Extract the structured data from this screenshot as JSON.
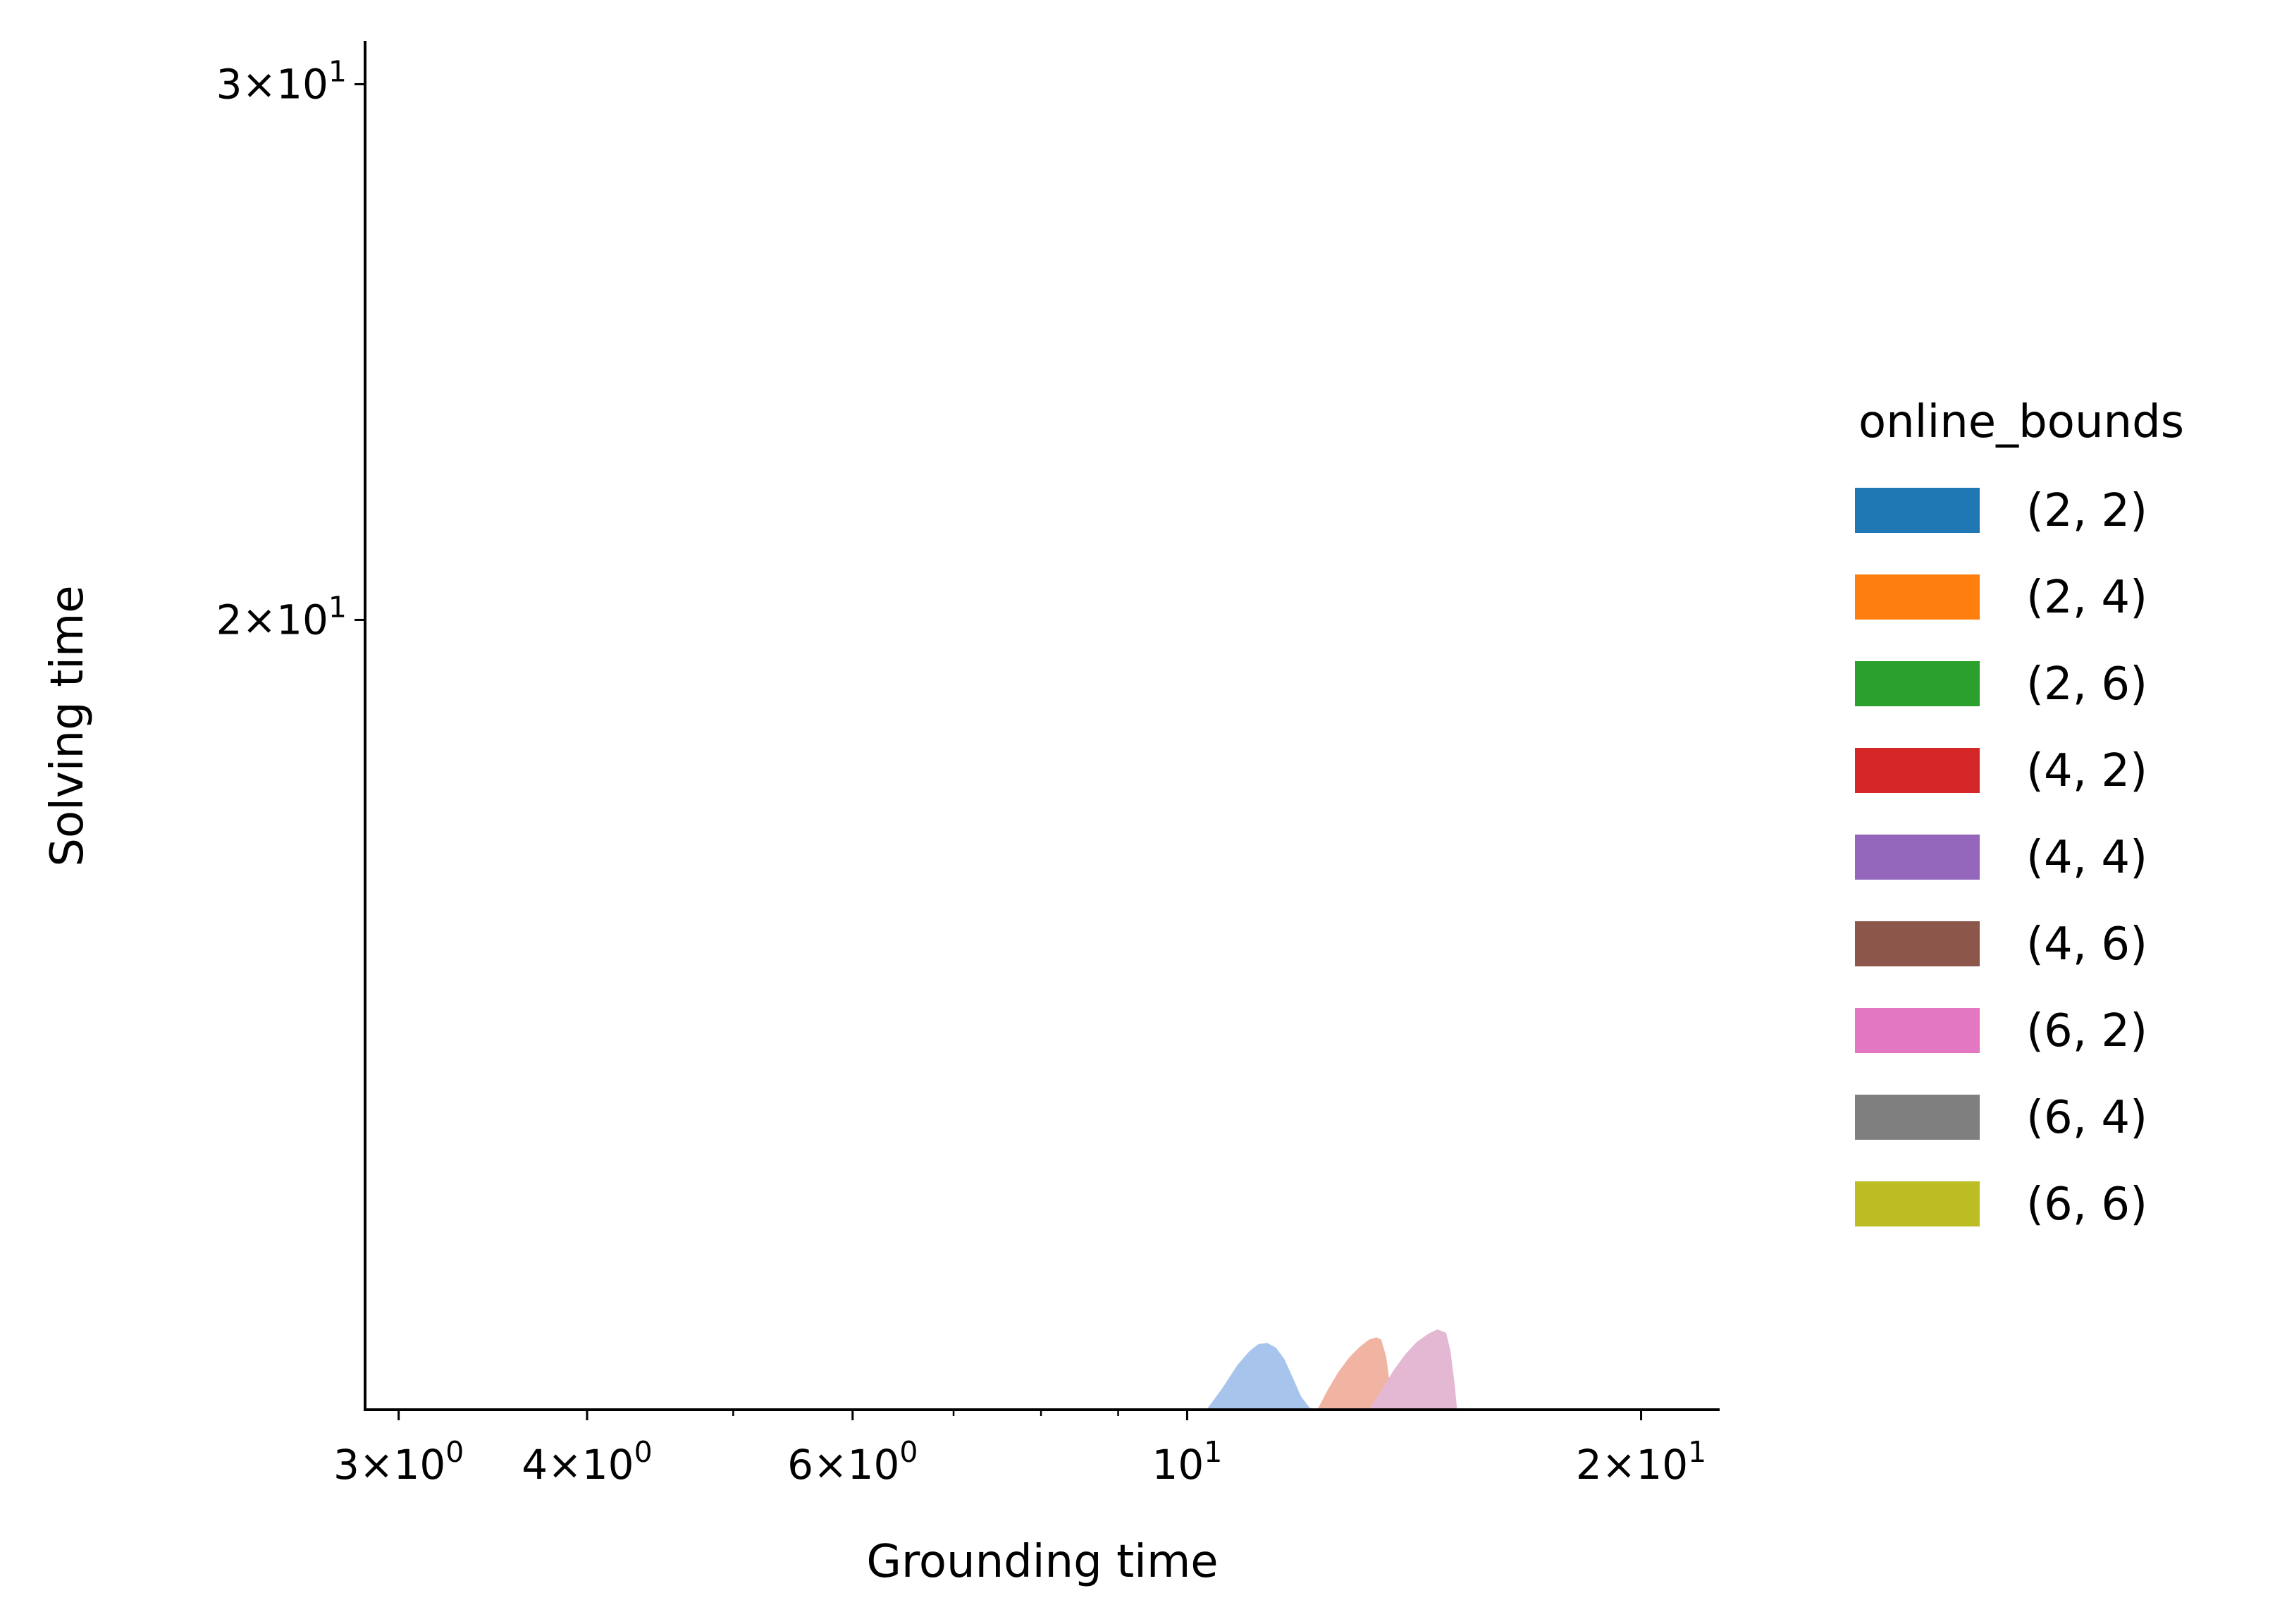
{
  "chart_data": {
    "type": "area",
    "xlabel": "Grounding time",
    "ylabel": "Solving time",
    "xscale": "log",
    "yscale": "log",
    "xlim": [
      2.85,
      22.5
    ],
    "ylim": [
      11.0,
      31.0
    ],
    "x_ticks": [
      {
        "value": 3,
        "mant": "3",
        "exp": "0"
      },
      {
        "value": 4,
        "mant": "4",
        "exp": "0"
      },
      {
        "value": 6,
        "mant": "6",
        "exp": "0"
      },
      {
        "value": 10,
        "mant": "",
        "exp": "1"
      },
      {
        "value": 20,
        "mant": "2",
        "exp": "1"
      }
    ],
    "x_minor_ticks": [
      5,
      7,
      8,
      9
    ],
    "y_ticks": [
      {
        "value": 20,
        "mant": "2",
        "exp": "1"
      },
      {
        "value": 30,
        "mant": "3",
        "exp": "1"
      }
    ],
    "legend": {
      "title": "online_bounds",
      "placement": "right",
      "entries": [
        {
          "label": "(2, 2)",
          "color": "#1f77b4"
        },
        {
          "label": "(2, 4)",
          "color": "#ff7f0e"
        },
        {
          "label": "(2, 6)",
          "color": "#2ca02c"
        },
        {
          "label": "(4, 2)",
          "color": "#d62728"
        },
        {
          "label": "(4, 4)",
          "color": "#9467bd"
        },
        {
          "label": "(4, 6)",
          "color": "#8c564b"
        },
        {
          "label": "(6, 2)",
          "color": "#e377c2"
        },
        {
          "label": "(6, 4)",
          "color": "#7f7f7f"
        },
        {
          "label": "(6, 6)",
          "color": "#bcbd22"
        }
      ]
    },
    "density_regions": [
      {
        "series": "(2, 2)",
        "color": "#a7c5ec",
        "x": [
          10.3,
          10.55,
          10.8,
          11.0,
          11.15,
          11.3,
          11.45,
          11.6,
          11.75,
          11.9,
          12.05,
          12.15
        ],
        "y": [
          11.0,
          11.18,
          11.38,
          11.5,
          11.56,
          11.57,
          11.53,
          11.43,
          11.27,
          11.11,
          11.02,
          11.0
        ]
      },
      {
        "series": "(4, 2)",
        "color": "#f1b4a2",
        "x": [
          12.2,
          12.4,
          12.6,
          12.8,
          13.0,
          13.2,
          13.35,
          13.45,
          13.55,
          13.65,
          13.7
        ],
        "y": [
          11.0,
          11.17,
          11.32,
          11.44,
          11.53,
          11.6,
          11.62,
          11.6,
          11.45,
          11.15,
          11.0
        ]
      },
      {
        "series": "(6, 2)",
        "color": "#e4b7d3",
        "x": [
          13.2,
          13.45,
          13.7,
          13.95,
          14.2,
          14.45,
          14.65,
          14.85,
          14.95,
          15.05,
          15.1
        ],
        "y": [
          11.0,
          11.16,
          11.33,
          11.47,
          11.58,
          11.65,
          11.69,
          11.66,
          11.5,
          11.2,
          11.0
        ]
      }
    ]
  }
}
